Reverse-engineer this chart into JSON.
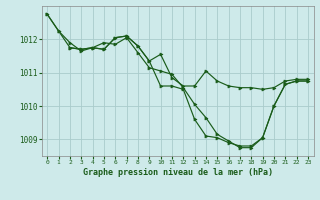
{
  "background_color": "#ceeaea",
  "grid_color": "#aacccc",
  "line_color": "#1a5c1a",
  "spine_color": "#888888",
  "title": "Graphe pression niveau de la mer (hPa)",
  "xlim": [
    -0.5,
    23.5
  ],
  "ylim": [
    1008.5,
    1013.0
  ],
  "yticks": [
    1009,
    1010,
    1011,
    1012
  ],
  "xticks": [
    0,
    1,
    2,
    3,
    4,
    5,
    6,
    7,
    8,
    9,
    10,
    11,
    12,
    13,
    14,
    15,
    16,
    17,
    18,
    19,
    20,
    21,
    22,
    23
  ],
  "series": [
    {
      "x": [
        0,
        1,
        2,
        3,
        4,
        5,
        6,
        7,
        8,
        9,
        10,
        11,
        12,
        13,
        14,
        15,
        16,
        17,
        18,
        19,
        20,
        21,
        22,
        23
      ],
      "y": [
        1012.75,
        1012.25,
        1011.9,
        1011.65,
        1011.75,
        1011.9,
        1011.85,
        1012.05,
        1011.6,
        1011.15,
        1011.05,
        1010.95,
        1010.55,
        1010.05,
        1009.65,
        1009.15,
        1008.95,
        1008.75,
        1008.75,
        1009.05,
        1010.0,
        1010.65,
        1010.75,
        1010.75
      ]
    },
    {
      "x": [
        0,
        1,
        2,
        3,
        4,
        5,
        6,
        7,
        8,
        9,
        10,
        11,
        12,
        13,
        14,
        15,
        16,
        17,
        18,
        19,
        20,
        21,
        22,
        23
      ],
      "y": [
        1012.75,
        1012.25,
        1011.75,
        1011.7,
        1011.75,
        1011.7,
        1012.05,
        1012.1,
        1011.8,
        1011.35,
        1011.55,
        1010.85,
        1010.6,
        1010.6,
        1011.05,
        1010.75,
        1010.6,
        1010.55,
        1010.55,
        1010.5,
        1010.55,
        1010.75,
        1010.8,
        1010.8
      ]
    },
    {
      "x": [
        2,
        3,
        4,
        5,
        6,
        7,
        8,
        9,
        10,
        11,
        12,
        13,
        14,
        15,
        16,
        17,
        18,
        19,
        20,
        21,
        22,
        23
      ],
      "y": [
        1011.75,
        1011.7,
        1011.75,
        1011.7,
        1012.05,
        1012.1,
        1011.8,
        1011.35,
        1010.6,
        1010.6,
        1010.5,
        1009.6,
        1009.1,
        1009.05,
        1008.9,
        1008.8,
        1008.8,
        1009.05,
        1010.0,
        1010.65,
        1010.75,
        1010.75
      ]
    }
  ]
}
